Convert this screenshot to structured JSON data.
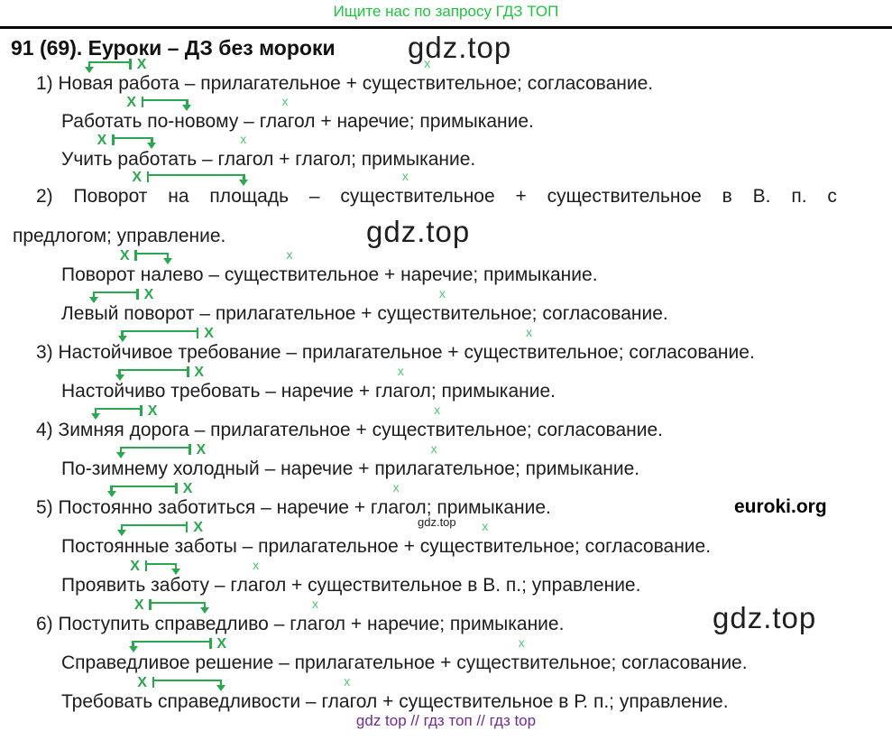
{
  "banner": "Ищите нас по запросу ГДЗ ТОП",
  "heading": "91 (69). Еуроки – ДЗ без мороки",
  "watermarks": {
    "top": "gdz.top",
    "mid": "gdz.top",
    "small": "gdz.top",
    "item6": "gdz.top"
  },
  "brand": "euroki.org",
  "footer": "gdz top  //  гдз топ  //  гдз top",
  "marks": {
    "big": "Х",
    "small": "х"
  },
  "colors": {
    "arrow_green": "#2aa84e",
    "small_x_green": "#4fc475",
    "banner_green": "#1dc53e",
    "footer_purple": "#6e2b96",
    "text": "#1c1c1c"
  },
  "lines": [
    {
      "before": "1) ",
      "w1": "Новая",
      "gap": " ",
      "w2": "работа",
      "arrow": "left",
      "mid": " – прилагательное + ",
      "xw": "существительное",
      "after": "; согласование."
    },
    {
      "before": "",
      "w1": "Работать",
      "gap": " ",
      "w2": "по-новому",
      "arrow": "right",
      "mid": " – ",
      "xw": "глагол",
      "after": " + наречие; примыкание."
    },
    {
      "before": "",
      "w1": "Учить",
      "gap": " ",
      "w2": "работать",
      "arrow": "right",
      "mid": " – ",
      "xw": "глагол",
      "after": " + глагол; примыкание."
    },
    {
      "before": "2) ",
      "w1": "Поворот",
      "gap": " на ",
      "w2": "площадь",
      "arrow": "right",
      "mid": " – ",
      "xw": "существительное",
      "after": " + существительное в В. п. с"
    },
    {
      "text": "предлогом; управление."
    },
    {
      "before": "",
      "w1": "Поворот",
      "gap": " ",
      "w2": "налево",
      "arrow": "right",
      "mid": " – ",
      "xw": "существительное",
      "after": " + наречие; примыкание."
    },
    {
      "before": "",
      "w1": "Левый",
      "gap": " ",
      "w2": "поворот",
      "arrow": "left",
      "mid": " – прилагательное + ",
      "xw": "существительное",
      "after": "; согласование."
    },
    {
      "before": "3) ",
      "w1": "Настойчивое",
      "gap": " ",
      "w2": "требование",
      "arrow": "left",
      "mid": " – прилагательное + ",
      "xw": "существительное",
      "after": "; согласование."
    },
    {
      "before": "",
      "w1": "Настойчиво",
      "gap": " ",
      "w2": "требовать",
      "arrow": "left",
      "mid": " – наречие + ",
      "xw": "глагол",
      "after": "; примыкание."
    },
    {
      "before": "4) ",
      "w1": "Зимняя",
      "gap": " ",
      "w2": "дорога",
      "arrow": "left",
      "mid": " – прилагательное + ",
      "xw": "существительное",
      "after": "; согласование."
    },
    {
      "before": "",
      "w1": "По-зимнему",
      "gap": " ",
      "w2": "холодный",
      "arrow": "left",
      "mid": " – наречие + ",
      "xw": "прилагательное",
      "after": "; примыкание."
    },
    {
      "before": "5) ",
      "w1": "Постоянно",
      "gap": " ",
      "w2": "заботиться",
      "arrow": "left",
      "mid": " – наречие + ",
      "xw": "глагол",
      "after": "; примыкание."
    },
    {
      "before": "",
      "w1": "Постоянные",
      "gap": " ",
      "w2": "заботы",
      "arrow": "left",
      "mid": " – прилагательное + ",
      "xw": "существительное",
      "after": "; согласование."
    },
    {
      "before": "",
      "w1": "Проявить",
      "gap": " ",
      "w2": "заботу",
      "arrow": "right",
      "mid": " – ",
      "xw": "глагол",
      "after": " + существительное в В. п.; управление."
    },
    {
      "before": "6) ",
      "w1": "Поступить",
      "gap": " ",
      "w2": "справедливо",
      "arrow": "right",
      "mid": " – ",
      "xw": "глагол",
      "after": " + наречие; примыкание."
    },
    {
      "before": "",
      "w1": "Справедливое",
      "gap": " ",
      "w2": "решение",
      "arrow": "left",
      "mid": " – прилагательное + ",
      "xw": "существительное",
      "after": "; согласование."
    },
    {
      "before": "",
      "w1": "Требовать",
      "gap": " ",
      "w2": "справедливости",
      "arrow": "right",
      "mid": " – ",
      "xw": "глагол",
      "after": " + существительное в Р. п.; управление."
    }
  ]
}
